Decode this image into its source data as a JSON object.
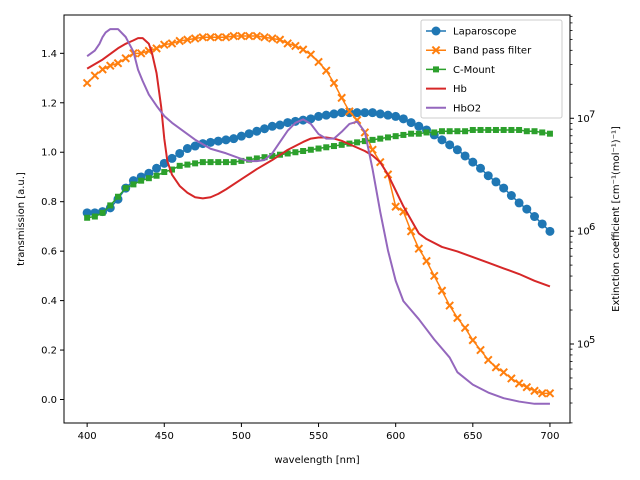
{
  "chart_data": {
    "type": "line",
    "xlabel": "wavelength [nm]",
    "ylabel": "transmission [a.u.]",
    "y2label": "Extinction coefficient [cm⁻¹(mol⁻¹)⁻¹]",
    "xlim": [
      385,
      713
    ],
    "ylim": [
      -0.095,
      1.555
    ],
    "y2lim_log": [
      4.3,
      7.915
    ],
    "y2_scale": "log",
    "legend_position": "top-right",
    "x_ticks": [
      400,
      450,
      500,
      550,
      600,
      650,
      700
    ],
    "x_tick_labels": [
      "400",
      "450",
      "500",
      "550",
      "600",
      "650",
      "700"
    ],
    "y_ticks": [
      0.0,
      0.2,
      0.4,
      0.6,
      0.8,
      1.0,
      1.2,
      1.4
    ],
    "y_tick_labels": [
      "0.0",
      "0.2",
      "0.4",
      "0.6",
      "0.8",
      "1.0",
      "1.2",
      "1.4"
    ],
    "y2_ticks_log": [
      5,
      6,
      7
    ],
    "y2_tick_labels": [
      "10",
      "10",
      "10"
    ],
    "y2_tick_exponents": [
      "5",
      "6",
      "7"
    ],
    "series": [
      {
        "name": "Laparoscope",
        "axis": "left",
        "color": "#1f77b4",
        "marker": "circle",
        "x": [
          400,
          405,
          410,
          415,
          420,
          425,
          430,
          435,
          440,
          445,
          450,
          455,
          460,
          465,
          470,
          475,
          480,
          485,
          490,
          495,
          500,
          505,
          510,
          515,
          520,
          525,
          530,
          535,
          540,
          545,
          550,
          555,
          560,
          565,
          570,
          575,
          580,
          585,
          590,
          595,
          600,
          605,
          610,
          615,
          620,
          625,
          630,
          635,
          640,
          645,
          650,
          655,
          660,
          665,
          670,
          675,
          680,
          685,
          690,
          695,
          700
        ],
        "y": [
          0.755,
          0.755,
          0.76,
          0.775,
          0.81,
          0.855,
          0.885,
          0.9,
          0.915,
          0.935,
          0.955,
          0.975,
          0.995,
          1.015,
          1.025,
          1.035,
          1.04,
          1.045,
          1.05,
          1.055,
          1.065,
          1.075,
          1.085,
          1.095,
          1.105,
          1.11,
          1.12,
          1.125,
          1.13,
          1.135,
          1.145,
          1.15,
          1.155,
          1.16,
          1.16,
          1.16,
          1.16,
          1.16,
          1.155,
          1.15,
          1.145,
          1.135,
          1.12,
          1.105,
          1.09,
          1.07,
          1.05,
          1.03,
          1.01,
          0.985,
          0.96,
          0.935,
          0.905,
          0.88,
          0.855,
          0.825,
          0.795,
          0.77,
          0.74,
          0.71,
          0.68
        ]
      },
      {
        "name": "Band pass filter",
        "axis": "left",
        "color": "#ff7f0e",
        "marker": "x",
        "x": [
          400,
          405,
          410,
          415,
          420,
          425,
          430,
          435,
          440,
          445,
          450,
          455,
          460,
          465,
          470,
          475,
          480,
          485,
          490,
          495,
          500,
          505,
          510,
          515,
          520,
          525,
          530,
          535,
          540,
          545,
          550,
          555,
          560,
          565,
          570,
          575,
          580,
          585,
          590,
          595,
          600,
          605,
          610,
          615,
          620,
          625,
          630,
          635,
          640,
          645,
          650,
          655,
          660,
          665,
          670,
          675,
          680,
          685,
          690,
          695,
          700
        ],
        "y": [
          1.28,
          1.31,
          1.335,
          1.35,
          1.36,
          1.38,
          1.4,
          1.4,
          1.41,
          1.42,
          1.435,
          1.44,
          1.45,
          1.455,
          1.46,
          1.465,
          1.465,
          1.465,
          1.465,
          1.47,
          1.47,
          1.47,
          1.47,
          1.465,
          1.46,
          1.455,
          1.44,
          1.43,
          1.415,
          1.395,
          1.365,
          1.33,
          1.28,
          1.22,
          1.165,
          1.13,
          1.08,
          1.01,
          0.96,
          0.91,
          0.78,
          0.76,
          0.68,
          0.61,
          0.56,
          0.5,
          0.44,
          0.38,
          0.33,
          0.29,
          0.24,
          0.2,
          0.16,
          0.13,
          0.11,
          0.085,
          0.065,
          0.05,
          0.035,
          0.025,
          0.025
        ]
      },
      {
        "name": "C-Mount",
        "axis": "left",
        "color": "#2ca02c",
        "marker": "square",
        "x": [
          400,
          405,
          410,
          415,
          420,
          425,
          430,
          435,
          440,
          445,
          450,
          455,
          460,
          465,
          470,
          475,
          480,
          485,
          490,
          495,
          500,
          505,
          510,
          515,
          520,
          525,
          530,
          535,
          540,
          545,
          550,
          555,
          560,
          565,
          570,
          575,
          580,
          585,
          590,
          595,
          600,
          605,
          610,
          615,
          620,
          625,
          630,
          635,
          640,
          645,
          650,
          655,
          660,
          665,
          670,
          675,
          680,
          685,
          690,
          695,
          700
        ],
        "y": [
          0.735,
          0.74,
          0.755,
          0.785,
          0.82,
          0.855,
          0.87,
          0.885,
          0.895,
          0.905,
          0.92,
          0.93,
          0.945,
          0.95,
          0.955,
          0.96,
          0.96,
          0.96,
          0.96,
          0.96,
          0.965,
          0.97,
          0.975,
          0.98,
          0.985,
          0.99,
          0.995,
          1.0,
          1.005,
          1.01,
          1.015,
          1.02,
          1.025,
          1.03,
          1.035,
          1.04,
          1.045,
          1.05,
          1.055,
          1.06,
          1.065,
          1.07,
          1.075,
          1.075,
          1.08,
          1.08,
          1.085,
          1.085,
          1.085,
          1.085,
          1.09,
          1.09,
          1.09,
          1.09,
          1.09,
          1.09,
          1.09,
          1.085,
          1.085,
          1.08,
          1.075
        ]
      },
      {
        "name": "Hb",
        "axis": "right",
        "color": "#d62728",
        "marker": "none",
        "x": [
          400,
          405,
          410,
          415,
          420,
          425,
          430,
          433,
          436,
          440,
          442,
          445,
          448,
          450,
          452,
          455,
          460,
          465,
          470,
          475,
          480,
          485,
          490,
          500,
          510,
          520,
          530,
          540,
          545,
          550,
          555,
          560,
          565,
          570,
          575,
          580,
          585,
          590,
          595,
          600,
          605,
          610,
          615,
          620,
          630,
          640,
          650,
          660,
          670,
          680,
          690,
          700
        ],
        "log_y": [
          7.44,
          7.48,
          7.52,
          7.57,
          7.62,
          7.66,
          7.69,
          7.71,
          7.71,
          7.66,
          7.58,
          7.4,
          7.1,
          6.82,
          6.62,
          6.5,
          6.4,
          6.34,
          6.3,
          6.29,
          6.3,
          6.33,
          6.37,
          6.46,
          6.55,
          6.63,
          6.72,
          6.79,
          6.82,
          6.83,
          6.83,
          6.82,
          6.8,
          6.77,
          6.74,
          6.71,
          6.67,
          6.61,
          6.5,
          6.36,
          6.22,
          6.1,
          5.98,
          5.93,
          5.86,
          5.82,
          5.77,
          5.72,
          5.67,
          5.62,
          5.56,
          5.51
        ]
      },
      {
        "name": "HbO2",
        "axis": "right",
        "color": "#9467bd",
        "marker": "none",
        "x": [
          400,
          405,
          408,
          410,
          412,
          415,
          420,
          425,
          430,
          433,
          436,
          440,
          445,
          450,
          455,
          460,
          465,
          470,
          480,
          490,
          500,
          505,
          510,
          515,
          520,
          525,
          530,
          535,
          540,
          545,
          550,
          555,
          560,
          565,
          570,
          575,
          580,
          585,
          590,
          595,
          600,
          605,
          610,
          615,
          620,
          625,
          630,
          635,
          640,
          650,
          660,
          670,
          680,
          690,
          700
        ],
        "log_y": [
          7.55,
          7.6,
          7.66,
          7.72,
          7.76,
          7.79,
          7.79,
          7.72,
          7.59,
          7.43,
          7.33,
          7.21,
          7.11,
          7.02,
          6.96,
          6.91,
          6.86,
          6.81,
          6.73,
          6.69,
          6.64,
          6.62,
          6.62,
          6.63,
          6.69,
          6.79,
          6.89,
          6.96,
          6.99,
          6.95,
          6.86,
          6.82,
          6.82,
          6.88,
          6.95,
          6.97,
          6.88,
          6.55,
          6.17,
          5.83,
          5.56,
          5.38,
          5.3,
          5.22,
          5.13,
          5.04,
          4.96,
          4.88,
          4.75,
          4.64,
          4.57,
          4.52,
          4.49,
          4.47,
          4.47
        ]
      }
    ]
  }
}
